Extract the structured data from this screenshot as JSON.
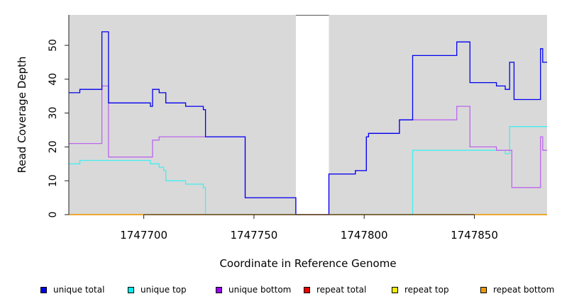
{
  "chart_data": {
    "type": "line",
    "xlabel": "Coordinate in Reference Genome",
    "ylabel": "Read Coverage Depth",
    "xlim": [
      1747666,
      1747883
    ],
    "ylim": [
      0,
      59
    ],
    "x_ticks": [
      1747700,
      1747750,
      1747800,
      1747850
    ],
    "y_ticks": [
      0,
      10,
      20,
      30,
      40,
      50
    ],
    "gap": [
      1747769,
      1747784
    ],
    "series": [
      {
        "name": "unique total",
        "color": "#0000ee",
        "points": [
          [
            1747666,
            36
          ],
          [
            1747671,
            37
          ],
          [
            1747681,
            54
          ],
          [
            1747684,
            33
          ],
          [
            1747703,
            32
          ],
          [
            1747704,
            37
          ],
          [
            1747707,
            36
          ],
          [
            1747710,
            33
          ],
          [
            1747719,
            32
          ],
          [
            1747727,
            31
          ],
          [
            1747728,
            23
          ],
          [
            1747746,
            5
          ],
          [
            1747769,
            0
          ],
          [
            1747784,
            12
          ],
          [
            1747796,
            13
          ],
          [
            1747801,
            23
          ],
          [
            1747802,
            24
          ],
          [
            1747816,
            28
          ],
          [
            1747822,
            47
          ],
          [
            1747842,
            51
          ],
          [
            1747848,
            39
          ],
          [
            1747860,
            38
          ],
          [
            1747864,
            37
          ],
          [
            1747866,
            45
          ],
          [
            1747868,
            34
          ],
          [
            1747880,
            49
          ],
          [
            1747881,
            45
          ],
          [
            1747883,
            45
          ]
        ]
      },
      {
        "name": "unique top",
        "color": "#44eeee",
        "points": [
          [
            1747666,
            15
          ],
          [
            1747671,
            16
          ],
          [
            1747703,
            15
          ],
          [
            1747707,
            14
          ],
          [
            1747709,
            13
          ],
          [
            1747710,
            10
          ],
          [
            1747719,
            9
          ],
          [
            1747727,
            8
          ],
          [
            1747728,
            0
          ],
          [
            1747769,
            0
          ],
          [
            1747784,
            0
          ],
          [
            1747822,
            19
          ],
          [
            1747864,
            18
          ],
          [
            1747866,
            26
          ],
          [
            1747883,
            26
          ]
        ]
      },
      {
        "name": "unique bottom",
        "color": "#bb66ee",
        "points": [
          [
            1747666,
            21
          ],
          [
            1747681,
            38
          ],
          [
            1747684,
            17
          ],
          [
            1747704,
            22
          ],
          [
            1747707,
            23
          ],
          [
            1747728,
            23
          ],
          [
            1747746,
            5
          ],
          [
            1747769,
            0
          ],
          [
            1747784,
            12
          ],
          [
            1747796,
            13
          ],
          [
            1747801,
            23
          ],
          [
            1747802,
            24
          ],
          [
            1747816,
            28
          ],
          [
            1747842,
            32
          ],
          [
            1747848,
            20
          ],
          [
            1747860,
            19
          ],
          [
            1747867,
            8
          ],
          [
            1747880,
            23
          ],
          [
            1747881,
            19
          ],
          [
            1747883,
            19
          ]
        ]
      },
      {
        "name": "repeat total",
        "color": "#ee0000",
        "points": [
          [
            1747666,
            0
          ],
          [
            1747769,
            0
          ],
          [
            1747784,
            0
          ],
          [
            1747883,
            0
          ]
        ]
      },
      {
        "name": "repeat top",
        "color": "#eeee00",
        "points": [
          [
            1747666,
            0
          ],
          [
            1747769,
            0
          ],
          [
            1747784,
            0
          ],
          [
            1747883,
            0
          ]
        ]
      },
      {
        "name": "repeat bottom",
        "color": "#ee9900",
        "points": [
          [
            1747666,
            0
          ],
          [
            1747769,
            0
          ],
          [
            1747784,
            0
          ],
          [
            1747883,
            0
          ]
        ]
      }
    ]
  },
  "legend": [
    {
      "label": "unique total",
      "color": "#0000ee"
    },
    {
      "label": "unique top",
      "color": "#00eeee"
    },
    {
      "label": "unique bottom",
      "color": "#9900ee"
    },
    {
      "label": "repeat total",
      "color": "#ee0000"
    },
    {
      "label": "repeat top",
      "color": "#eeee00"
    },
    {
      "label": "repeat bottom",
      "color": "#ee9900"
    }
  ]
}
